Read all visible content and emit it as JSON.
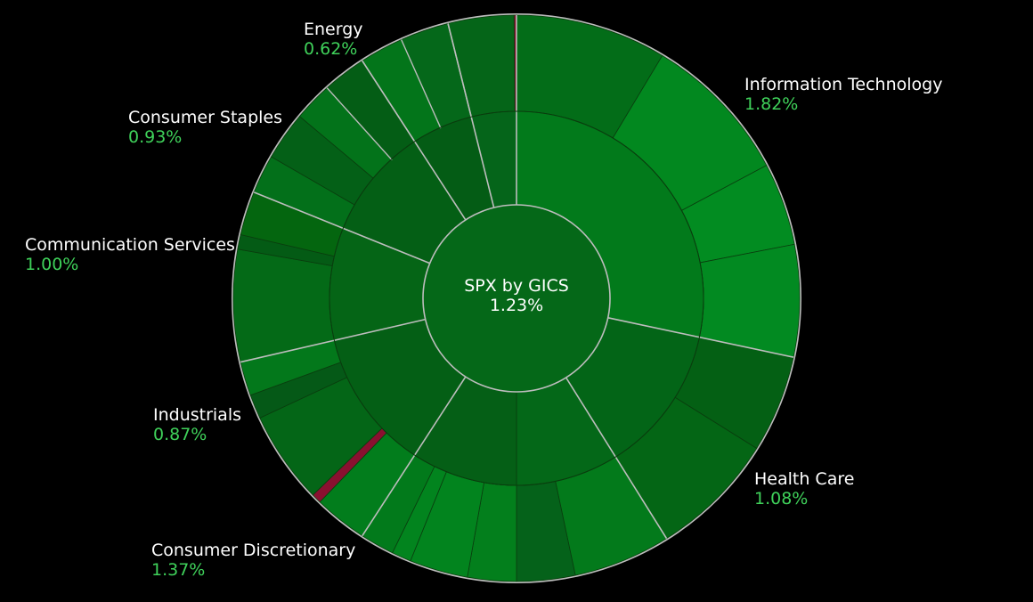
{
  "chart_data": {
    "type": "sunburst",
    "title": "SPX by GICS",
    "total_change": "1.23%",
    "sectors": [
      {
        "name": "Information Technology",
        "change": "1.82%"
      },
      {
        "name": "Health Care",
        "change": "1.08%"
      },
      {
        "name": "Consumer Discretionary",
        "change": "1.37%"
      },
      {
        "name": "Industrials",
        "change": "0.87%"
      },
      {
        "name": "Communication Services",
        "change": "1.00%"
      },
      {
        "name": "Consumer Staples",
        "change": "0.93%"
      },
      {
        "name": "Energy",
        "change": "0.62%"
      }
    ],
    "colors": {
      "background": "#000000",
      "positive_text": "#3fd15a",
      "label_text": "#ffffff",
      "negative_segment": "#8a1030",
      "separator": "#bdbdbd"
    }
  }
}
